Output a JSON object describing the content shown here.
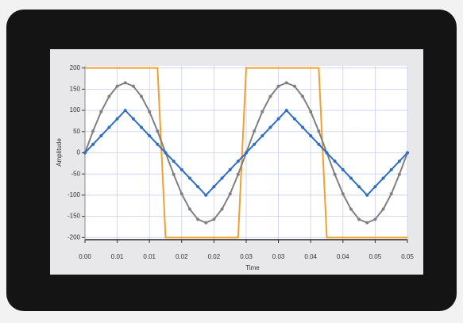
{
  "chart_data": {
    "type": "line",
    "x_label": "Time",
    "y_label": "Amplitude",
    "x": [
      0,
      0.00125,
      0.0025,
      0.00375,
      0.005,
      0.00625,
      0.0075,
      0.00875,
      0.01,
      0.01125,
      0.0125,
      0.01375,
      0.015,
      0.01625,
      0.0175,
      0.01875,
      0.02,
      0.02125,
      0.0225,
      0.02375,
      0.025,
      0.02625,
      0.0275,
      0.02875,
      0.03,
      0.03125,
      0.0325,
      0.03375,
      0.035,
      0.03625,
      0.0375,
      0.03875,
      0.04,
      0.04125,
      0.0425,
      0.04375,
      0.045,
      0.04625,
      0.0475,
      0.04875,
      0.05
    ],
    "series": [
      {
        "color": "#f0a030",
        "markers": false,
        "values": [
          200,
          200,
          200,
          200,
          200,
          200,
          200,
          200,
          200,
          200,
          -200,
          -200,
          -200,
          -200,
          -200,
          -200,
          -200,
          -200,
          -200,
          -200,
          200,
          200,
          200,
          200,
          200,
          200,
          200,
          200,
          200,
          200,
          -200,
          -200,
          -200,
          -200,
          -200,
          -200,
          -200,
          -200,
          -200,
          -200,
          -200
        ]
      },
      {
        "color": "#808080",
        "markers": true,
        "values": [
          0,
          51,
          97,
          133,
          157,
          165,
          157,
          133,
          97,
          51,
          0,
          -51,
          -97,
          -133,
          -157,
          -165,
          -157,
          -133,
          -97,
          -51,
          0,
          51,
          97,
          133,
          157,
          165,
          157,
          133,
          97,
          51,
          0,
          -51,
          -97,
          -133,
          -157,
          -165,
          -157,
          -133,
          -97,
          -51,
          0
        ]
      },
      {
        "color": "#2f6fc0",
        "markers": true,
        "values": [
          0,
          20,
          40,
          60,
          80,
          100,
          80,
          60,
          40,
          20,
          0,
          -20,
          -40,
          -60,
          -80,
          -100,
          -80,
          -60,
          -40,
          -20,
          0,
          20,
          40,
          60,
          80,
          100,
          80,
          60,
          40,
          20,
          0,
          -20,
          -40,
          -60,
          -80,
          -100,
          -80,
          -60,
          -40,
          -20,
          0
        ]
      }
    ],
    "xlim": [
      0,
      0.05
    ],
    "xticks": [
      {
        "value": 0,
        "label": "0.00"
      },
      {
        "value": 0.005,
        "label": "0.01"
      },
      0.01,
      {
        "value": 0.015,
        "label": "0.02"
      },
      0.02,
      {
        "value": 0.025,
        "label": "0.03"
      },
      0.03,
      {
        "value": 0.035,
        "label": "0.04"
      },
      0.04,
      {
        "value": 0.045,
        "label": "0.05"
      },
      0.05
    ],
    "ylim": [
      -205,
      205
    ],
    "yticks": [
      -200,
      -150,
      -100,
      -50,
      0,
      50,
      100,
      150,
      200
    ],
    "grid": true
  }
}
